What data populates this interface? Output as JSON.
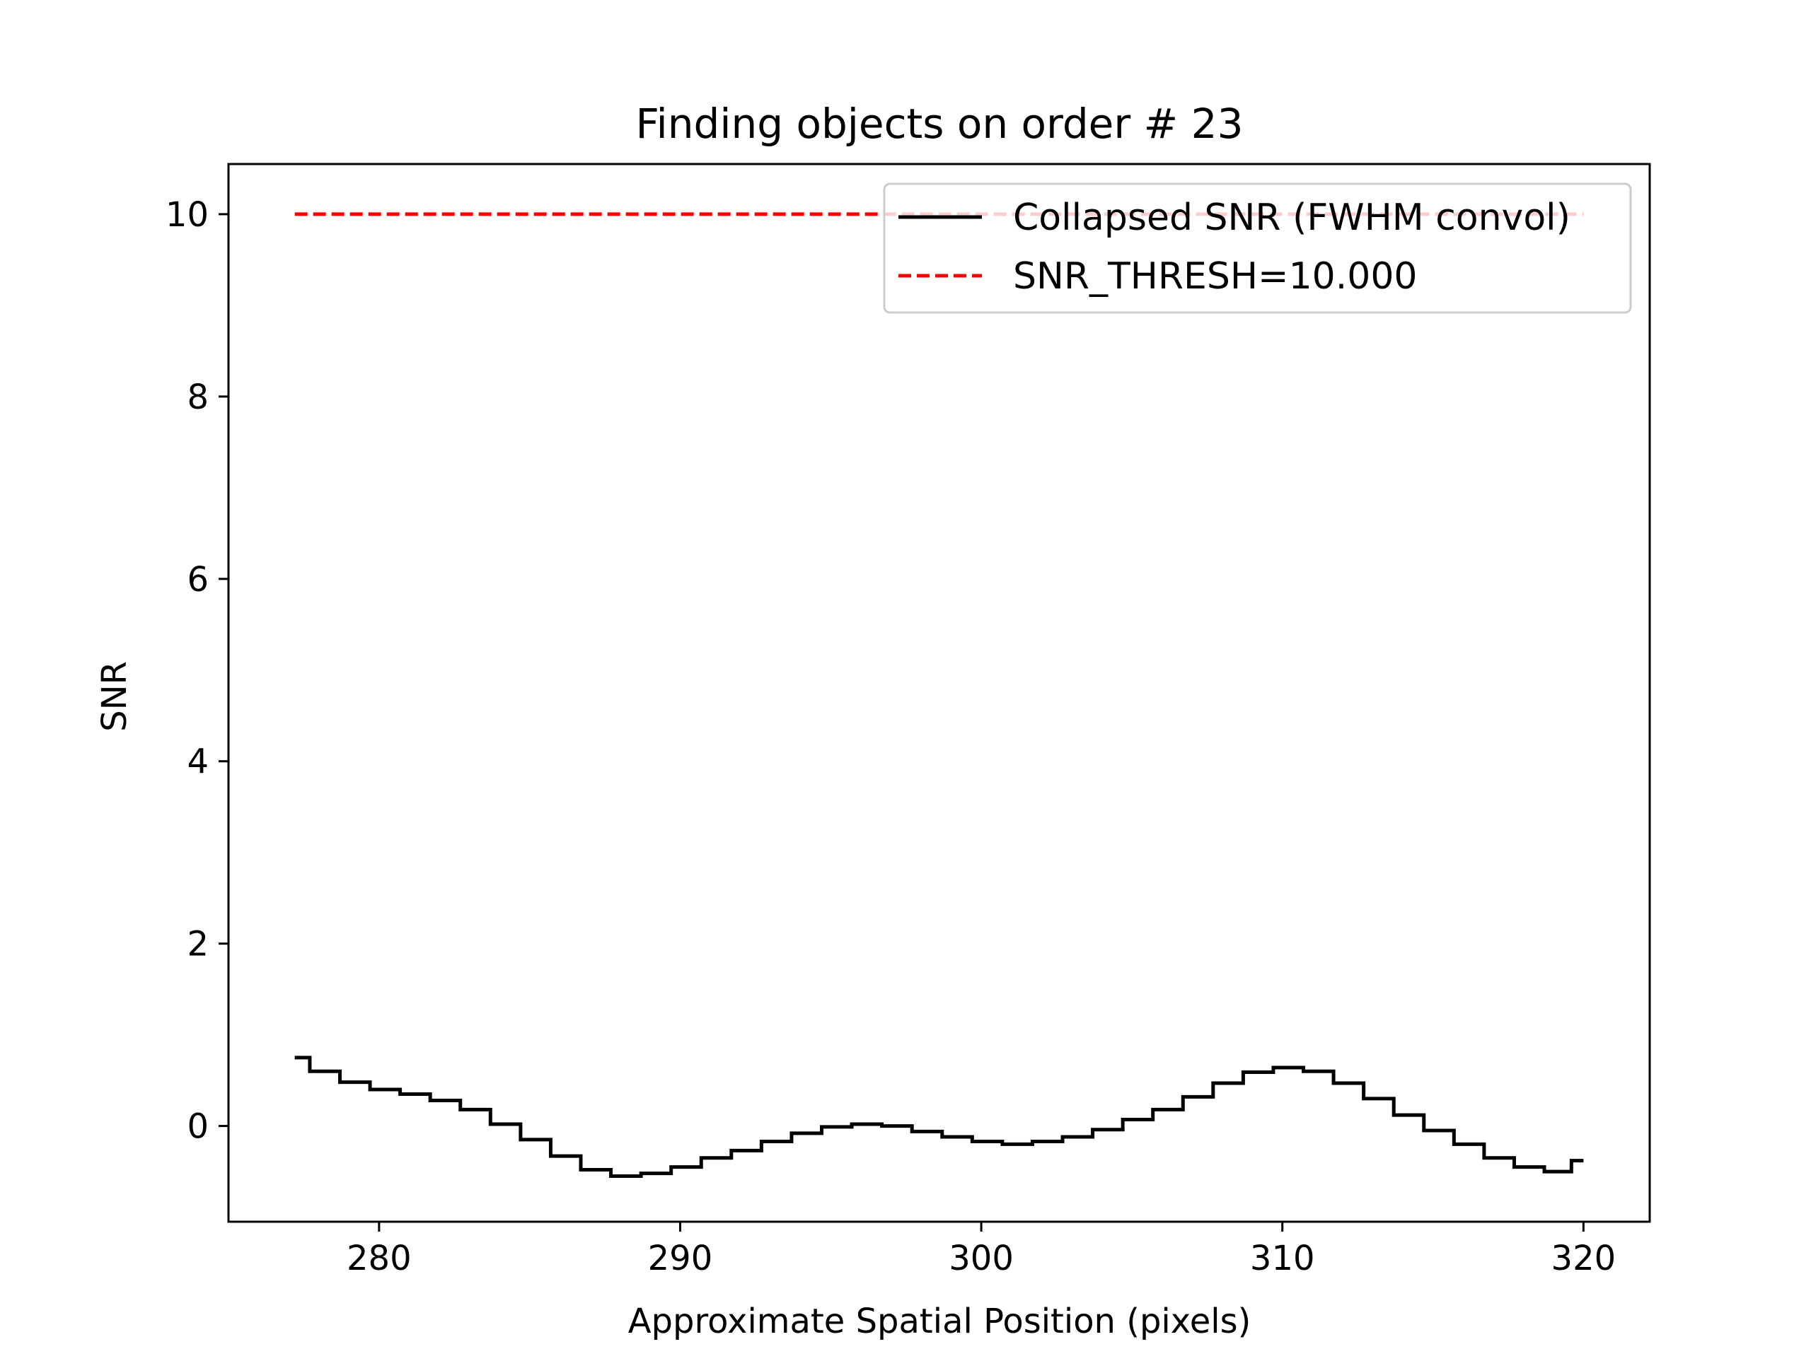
{
  "chart_data": {
    "type": "line",
    "title": "Finding objects on order # 23",
    "xlabel": "Approximate Spatial Position (pixels)",
    "ylabel": "SNR",
    "xlim": [
      275,
      322.2
    ],
    "ylim": [
      -1.05,
      10.55
    ],
    "xticks": [
      280,
      290,
      300,
      310,
      320
    ],
    "yticks": [
      0,
      2,
      4,
      6,
      8,
      10
    ],
    "grid": false,
    "legend_position": "upper right",
    "series": [
      {
        "name": "Collapsed SNR (FWHM convol)",
        "style": "steps-mid",
        "color": "#000000",
        "x": [
          277.2,
          278.2,
          279.2,
          280.2,
          281.2,
          282.2,
          283.2,
          284.2,
          285.2,
          286.2,
          287.2,
          288.2,
          289.2,
          290.2,
          291.2,
          292.2,
          293.2,
          294.2,
          295.2,
          296.2,
          297.2,
          298.2,
          299.2,
          300.2,
          301.2,
          302.2,
          303.2,
          304.2,
          305.2,
          306.2,
          307.2,
          308.2,
          309.2,
          310.2,
          311.2,
          312.2,
          313.2,
          314.2,
          315.2,
          316.2,
          317.2,
          318.2,
          319.2,
          320.0
        ],
        "y": [
          0.75,
          0.6,
          0.48,
          0.4,
          0.35,
          0.28,
          0.18,
          0.02,
          -0.15,
          -0.33,
          -0.48,
          -0.55,
          -0.52,
          -0.45,
          -0.35,
          -0.27,
          -0.17,
          -0.08,
          -0.01,
          0.02,
          0.0,
          -0.06,
          -0.12,
          -0.17,
          -0.2,
          -0.17,
          -0.12,
          -0.04,
          0.07,
          0.18,
          0.32,
          0.47,
          0.59,
          0.64,
          0.6,
          0.47,
          0.3,
          0.12,
          -0.05,
          -0.2,
          -0.35,
          -0.45,
          -0.5,
          -0.38
        ]
      },
      {
        "name": "SNR_THRESH=10.000",
        "style": "dashed",
        "color": "#ff0000",
        "x": [
          277.2,
          320.0
        ],
        "y": [
          10.0,
          10.0
        ]
      }
    ]
  }
}
